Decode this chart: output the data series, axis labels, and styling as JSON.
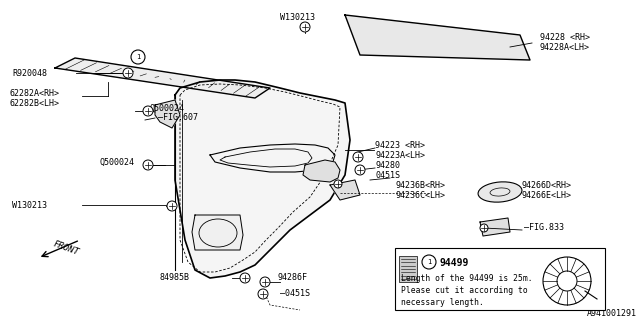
{
  "bg_color": "#ffffff",
  "diagram_id": "A941001291",
  "line_color": "#000000",
  "font_size": 6.0,
  "note_text_lines": [
    "Length of the 94499 is 25m.",
    "Please cut it according to",
    "necessary length."
  ]
}
